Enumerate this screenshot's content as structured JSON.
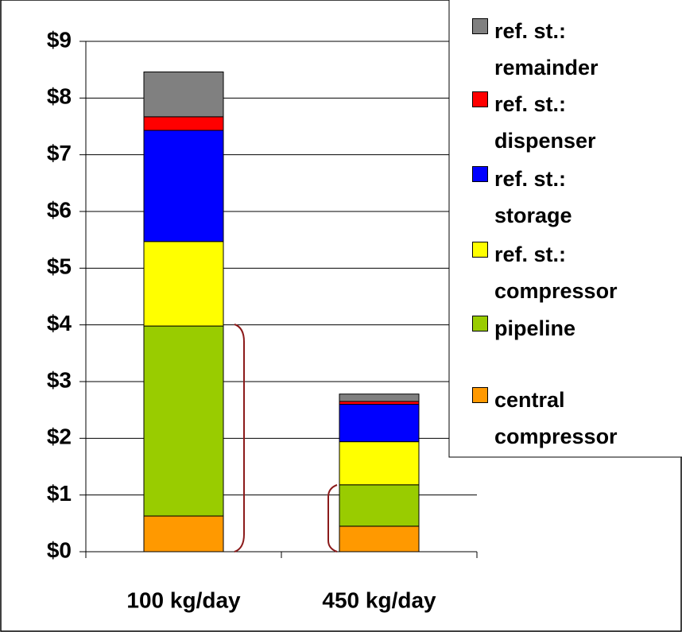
{
  "chart_data": {
    "type": "stacked_bar",
    "categories": [
      "100 kg/day",
      "450 kg/day"
    ],
    "series": [
      {
        "name": "central compressor",
        "color": "#ff9900",
        "values": [
          0.63,
          0.45
        ]
      },
      {
        "name": "pipeline",
        "color": "#99cc00",
        "values": [
          3.35,
          0.73
        ]
      },
      {
        "name": "ref. st.: compressor",
        "color": "#ffff00",
        "values": [
          1.49,
          0.76
        ]
      },
      {
        "name": "ref. st.: storage",
        "color": "#0000ff",
        "values": [
          1.96,
          0.66
        ]
      },
      {
        "name": "ref. st.: dispenser",
        "color": "#ff0000",
        "values": [
          0.24,
          0.05
        ]
      },
      {
        "name": "ref. st.: remainder",
        "color": "#808080",
        "values": [
          0.79,
          0.13
        ]
      }
    ],
    "ylim": [
      0,
      9
    ],
    "yticks": [
      {
        "value": 0,
        "label": "$0"
      },
      {
        "value": 1,
        "label": "$1"
      },
      {
        "value": 2,
        "label": "$2"
      },
      {
        "value": 3,
        "label": "$3"
      },
      {
        "value": 4,
        "label": "$4"
      },
      {
        "value": 5,
        "label": "$5"
      },
      {
        "value": 6,
        "label": "$6"
      },
      {
        "value": 7,
        "label": "$7"
      },
      {
        "value": 8,
        "label": "$8"
      },
      {
        "value": 9,
        "label": "$9"
      }
    ],
    "grid": true,
    "legend": "right"
  }
}
